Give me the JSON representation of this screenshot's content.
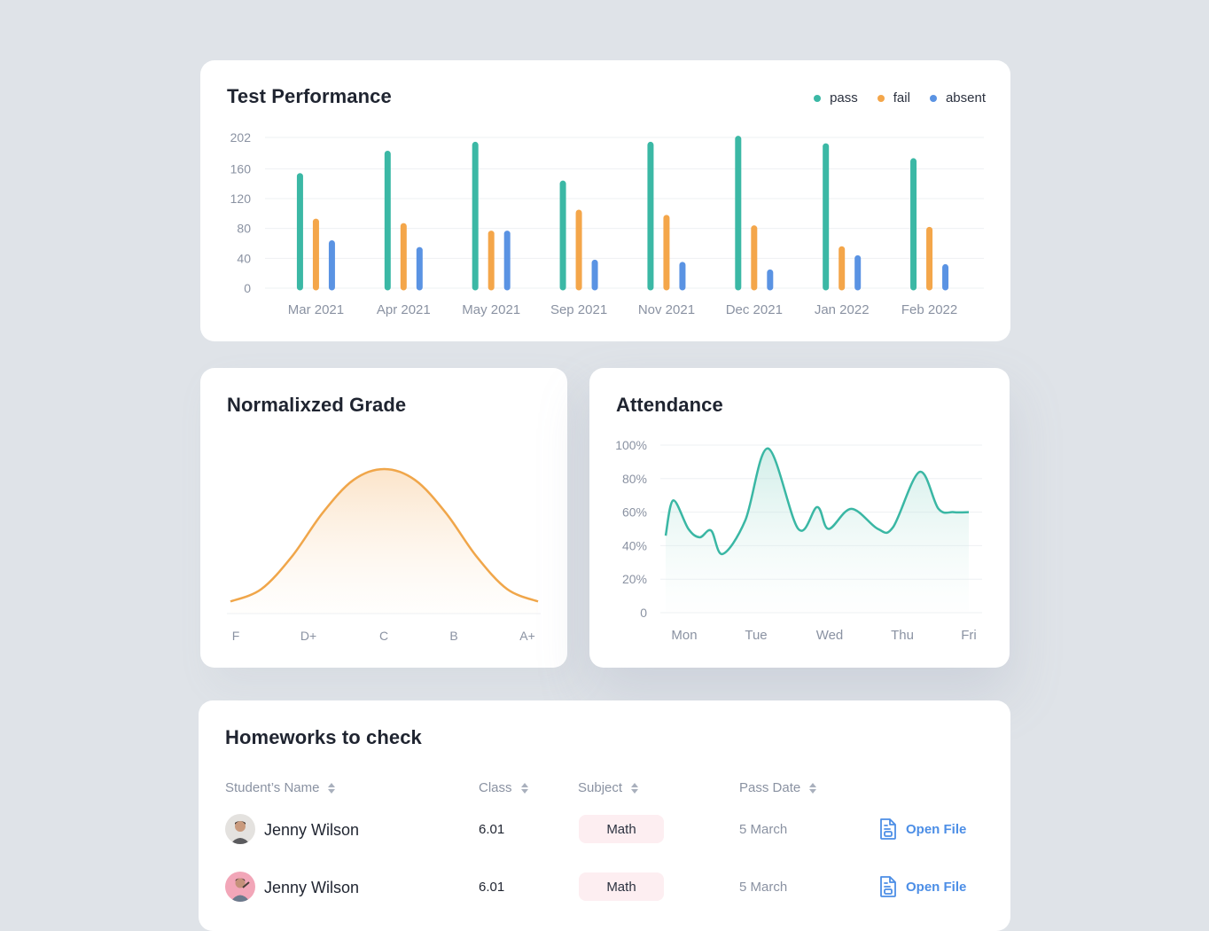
{
  "colors": {
    "pass": "#3bb8a5",
    "fail": "#f4a64a",
    "absent": "#5a93e3",
    "grade": "#f0a64a",
    "attendance": "#3ab7a4",
    "link": "#4c8ee6",
    "badge_bg": "#fdeef1"
  },
  "performance": {
    "title": "Test Performance",
    "legend": [
      "pass",
      "fail",
      "absent"
    ]
  },
  "grade": {
    "title": "Normalixzed Grade"
  },
  "attendance": {
    "title": "Attendance"
  },
  "chart_data": [
    {
      "type": "bar",
      "title": "Test Performance",
      "categories": [
        "Mar 2021",
        "Apr 2021",
        "May 2021",
        "Sep 2021",
        "Nov 2021",
        "Dec 2021",
        "Jan 2022",
        "Feb 2022"
      ],
      "series": [
        {
          "name": "pass",
          "values": [
            150,
            180,
            192,
            140,
            192,
            200,
            190,
            170
          ]
        },
        {
          "name": "fail",
          "values": [
            89,
            83,
            73,
            101,
            94,
            80,
            52,
            78
          ]
        },
        {
          "name": "absent",
          "values": [
            60,
            51,
            73,
            34,
            31,
            21,
            40,
            28
          ]
        }
      ],
      "yticks": [
        "0",
        "40",
        "80",
        "120",
        "160",
        "202"
      ],
      "ylim": [
        0,
        202
      ],
      "legend_position": "top-right"
    },
    {
      "type": "area",
      "title": "Normalixzed Grade",
      "categories": [
        "F",
        "D+",
        "C",
        "B",
        "A+"
      ],
      "x": [
        0,
        0.1,
        0.2,
        0.3,
        0.4,
        0.5,
        0.6,
        0.7,
        0.8,
        0.9,
        1.0
      ],
      "values": [
        0.03,
        0.12,
        0.36,
        0.68,
        0.92,
        1.0,
        0.92,
        0.68,
        0.36,
        0.12,
        0.03
      ]
    },
    {
      "type": "area",
      "title": "Attendance",
      "categories": [
        "Mon",
        "Tue",
        "Wed",
        "Thu",
        "Fri"
      ],
      "yticks": [
        "0",
        "20%",
        "40%",
        "60%",
        "80%",
        "100%"
      ],
      "ylim": [
        0,
        100
      ],
      "x": [
        0,
        0.1,
        0.3,
        0.45,
        0.6,
        0.75,
        1.05,
        1.35,
        1.75,
        2.0,
        2.15,
        2.45,
        2.8,
        3.0,
        3.35,
        3.6,
        3.8,
        4.0
      ],
      "values": [
        46,
        67,
        50,
        45,
        49,
        35,
        55,
        98,
        50,
        63,
        50,
        62,
        50,
        51,
        84,
        62,
        60,
        60
      ]
    }
  ],
  "homeworks": {
    "title": "Homeworks to check",
    "columns": [
      "Student’s Name",
      "Class",
      "Subject",
      "Pass Date"
    ],
    "rows": [
      {
        "name": "Jenny Wilson",
        "class": "6.01",
        "subject": "Math",
        "date": "5 March",
        "action": "Open File",
        "avatar": "avatar-gray"
      },
      {
        "name": "Jenny Wilson",
        "class": "6.01",
        "subject": "Math",
        "date": "5 March",
        "action": "Open File",
        "avatar": "avatar-pink"
      }
    ]
  }
}
